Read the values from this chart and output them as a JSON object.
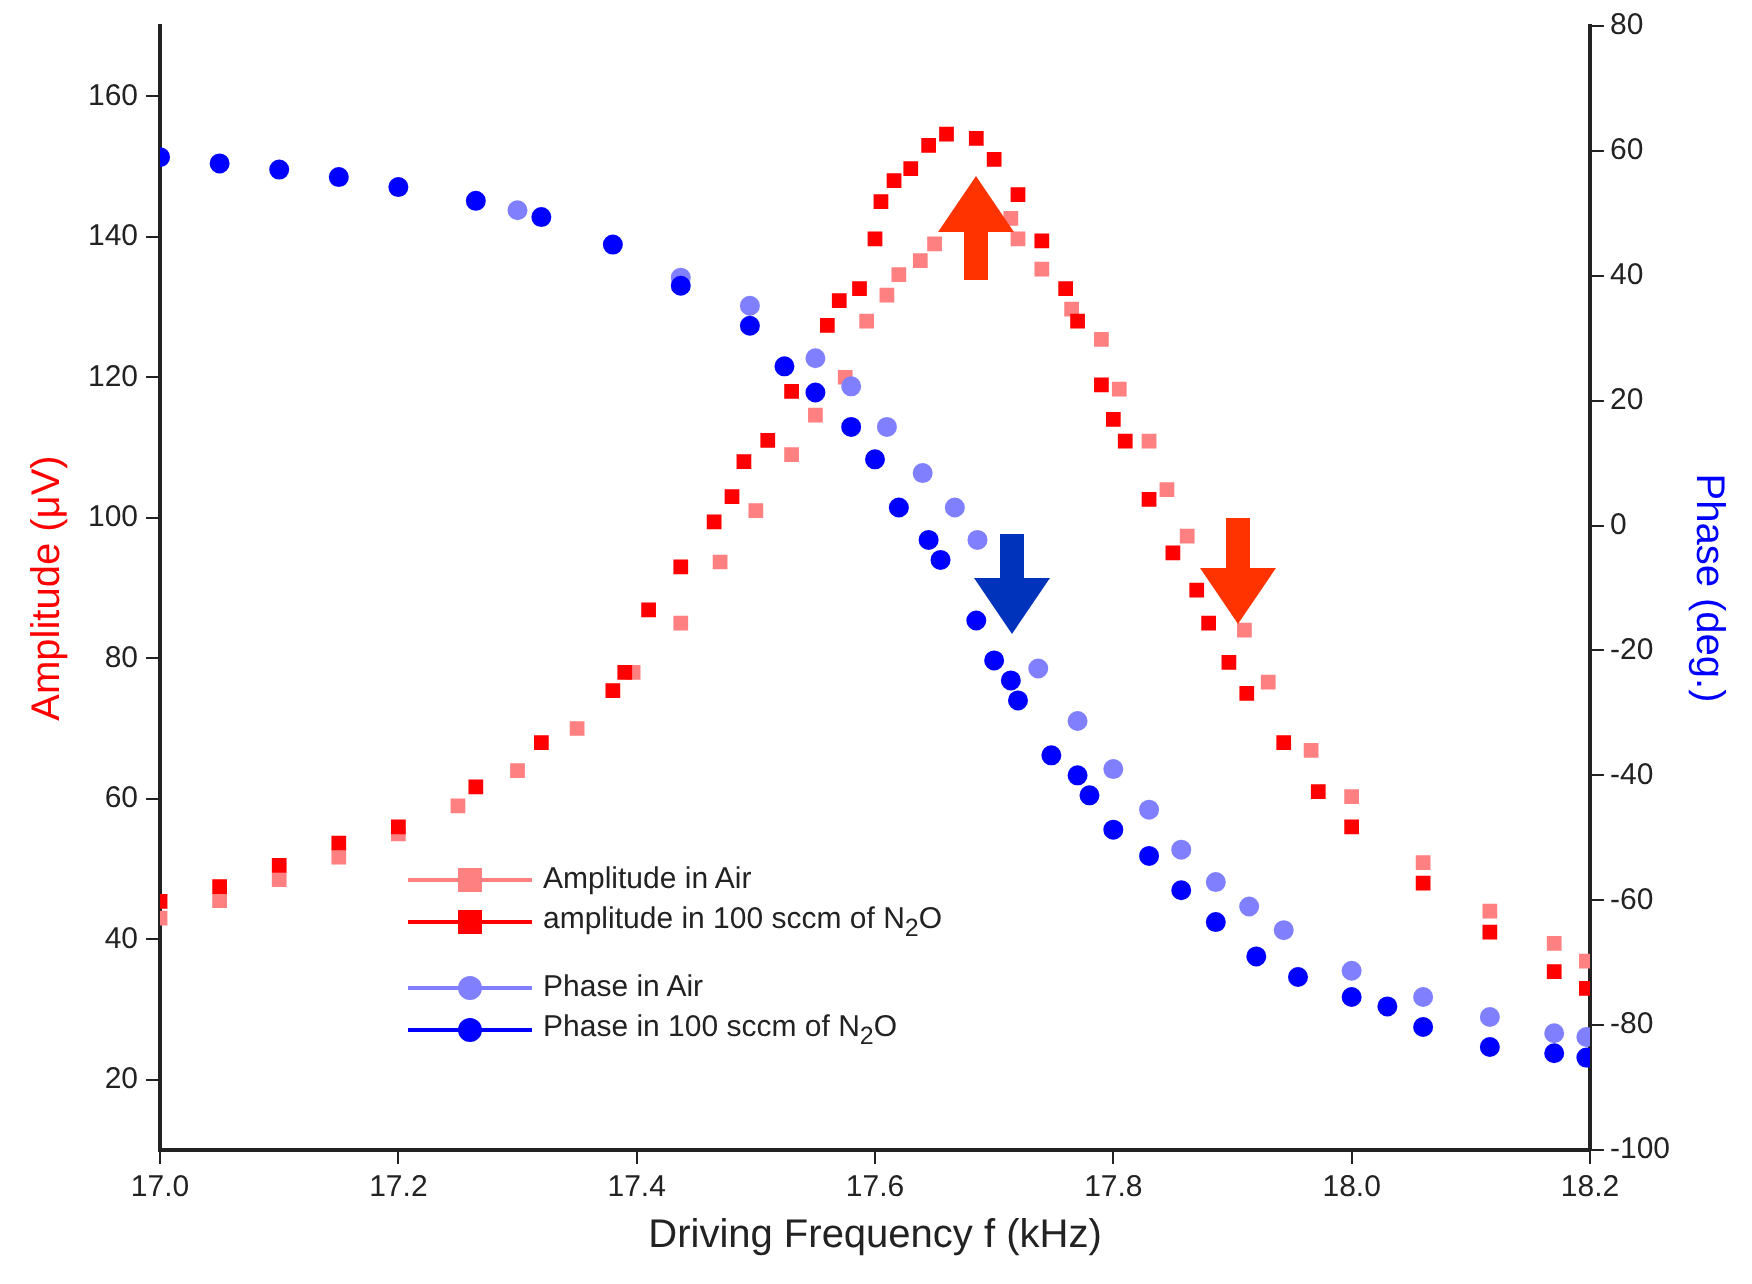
{
  "chart_data": {
    "type": "scatter",
    "xlabel": "Driving Frequency f (kHz)",
    "ylabel": "Amplitude (μV)",
    "y2label": "Phase (deg.)",
    "xlim": [
      17.0,
      18.2
    ],
    "xticks": [
      {
        "value": 17,
        "label": "17.0"
      },
      {
        "value": 17.2,
        "label": "17.2"
      },
      {
        "value": 17.4,
        "label": "17.4"
      },
      {
        "value": 17.6,
        "label": "17.6"
      },
      {
        "value": 17.8,
        "label": "17.8"
      },
      {
        "value": 18,
        "label": "18.0"
      },
      {
        "value": 18.2,
        "label": "18.2"
      }
    ],
    "ylim": [
      10,
      170
    ],
    "yticks": [
      20,
      40,
      60,
      80,
      100,
      120,
      140,
      160
    ],
    "y2lim": [
      -100,
      80
    ],
    "y2ticks": [
      -100,
      -80,
      -60,
      -40,
      -20,
      0,
      20,
      40,
      60,
      80
    ],
    "grid": false,
    "legend": "bottom",
    "series": [
      {
        "name": "Amplitude in Air",
        "color": "#ff8080",
        "marker": "square",
        "x": [
          17.0,
          17.05,
          17.1,
          17.15,
          17.2,
          17.25,
          17.3,
          17.35,
          17.38,
          17.397,
          17.437,
          17.47,
          17.5,
          17.53,
          17.55,
          17.575,
          17.593,
          17.61,
          17.62,
          17.638,
          17.65,
          17.68,
          17.714,
          17.72,
          17.74,
          17.765,
          17.79,
          17.805,
          17.83,
          17.845,
          17.862,
          17.886,
          17.91,
          17.93,
          17.966,
          18.0,
          18.06,
          18.116,
          18.17,
          18.197
        ],
        "values": [
          43,
          45.5,
          48.5,
          51.7,
          55,
          59,
          64,
          70,
          null,
          78,
          85,
          93.7,
          101,
          109,
          114.6,
          120,
          128,
          131.7,
          134.6,
          136.6,
          139,
          null,
          142.6,
          139.7,
          135.4,
          129.7,
          125.4,
          118.3,
          110.9,
          104,
          97.4,
          null,
          84,
          76.6,
          66.9,
          60.3,
          50.9,
          44,
          39.4,
          36.9
        ]
      },
      {
        "name": "amplitude in 100 sccm of N$_{2}$O",
        "color": "#ff0000",
        "marker": "square",
        "x": [
          17.0,
          17.05,
          17.1,
          17.15,
          17.2,
          17.265,
          17.32,
          17.38,
          17.39,
          17.41,
          17.437,
          17.465,
          17.48,
          17.49,
          17.51,
          17.53,
          17.56,
          17.57,
          17.587,
          17.6,
          17.605,
          17.616,
          17.63,
          17.645,
          17.66,
          17.685,
          17.7,
          17.72,
          17.74,
          17.76,
          17.77,
          17.79,
          17.8,
          17.81,
          17.83,
          17.85,
          17.87,
          17.88,
          17.897,
          17.912,
          17.943,
          17.972,
          18.0,
          18.06,
          18.116,
          18.17,
          18.197
        ],
        "values": [
          45.4,
          47.5,
          50.5,
          53.7,
          56,
          61.7,
          68,
          75.4,
          78,
          86.9,
          93,
          99.4,
          103,
          108,
          111,
          118,
          127.4,
          130.9,
          132.6,
          139.7,
          145,
          148,
          149.7,
          153,
          154.6,
          154,
          151,
          146,
          139.4,
          132.6,
          128,
          118.9,
          114,
          110.9,
          102.6,
          95,
          89.7,
          85,
          79.4,
          75,
          68,
          61,
          56,
          48,
          41,
          35.4,
          33
        ]
      },
      {
        "name": "Phase in Air",
        "color": "#8080ff",
        "marker": "circle",
        "axis": "y2",
        "x": [
          17.3,
          17.437,
          17.495,
          17.55,
          17.58,
          17.61,
          17.64,
          17.667,
          17.686,
          17.714,
          17.737,
          17.77,
          17.8,
          17.83,
          17.857,
          17.886,
          17.914,
          17.943,
          18.0,
          18.06,
          18.116,
          18.17,
          18.197
        ],
        "values": [
          50.5,
          39.7,
          35.2,
          26.8,
          22.3,
          15.8,
          8.4,
          2.9,
          -2.3,
          null,
          -22.9,
          -31.3,
          -39,
          -45.5,
          -51.9,
          -57.1,
          -61,
          -64.8,
          -71.3,
          -75.5,
          -78.7,
          -81.3,
          -81.9
        ]
      },
      {
        "name": "Phase in 100 sccm of N$_{2}$O",
        "color": "#0000ff",
        "marker": "circle",
        "axis": "y2",
        "x": [
          17.0,
          17.05,
          17.1,
          17.15,
          17.2,
          17.265,
          17.32,
          17.38,
          17.437,
          17.495,
          17.524,
          17.55,
          17.58,
          17.6,
          17.62,
          17.645,
          17.655,
          17.685,
          17.7,
          17.714,
          17.72,
          17.748,
          17.77,
          17.78,
          17.8,
          17.83,
          17.857,
          17.886,
          17.92,
          17.955,
          18.0,
          18.03,
          18.06,
          18.116,
          18.17,
          18.197
        ],
        "values": [
          59,
          58,
          57,
          55.8,
          54.2,
          52,
          49.4,
          45,
          38.4,
          32,
          25.5,
          21.3,
          15.8,
          10.6,
          2.9,
          -2.3,
          -5.5,
          -15.2,
          -21.6,
          -24.8,
          -28,
          -36.8,
          -40,
          -43.2,
          -48.7,
          -52.9,
          -58.4,
          -63.5,
          -69,
          -72.3,
          -75.5,
          -77,
          -80.3,
          -83.5,
          -84.5,
          -85.2
        ]
      }
    ]
  }
}
